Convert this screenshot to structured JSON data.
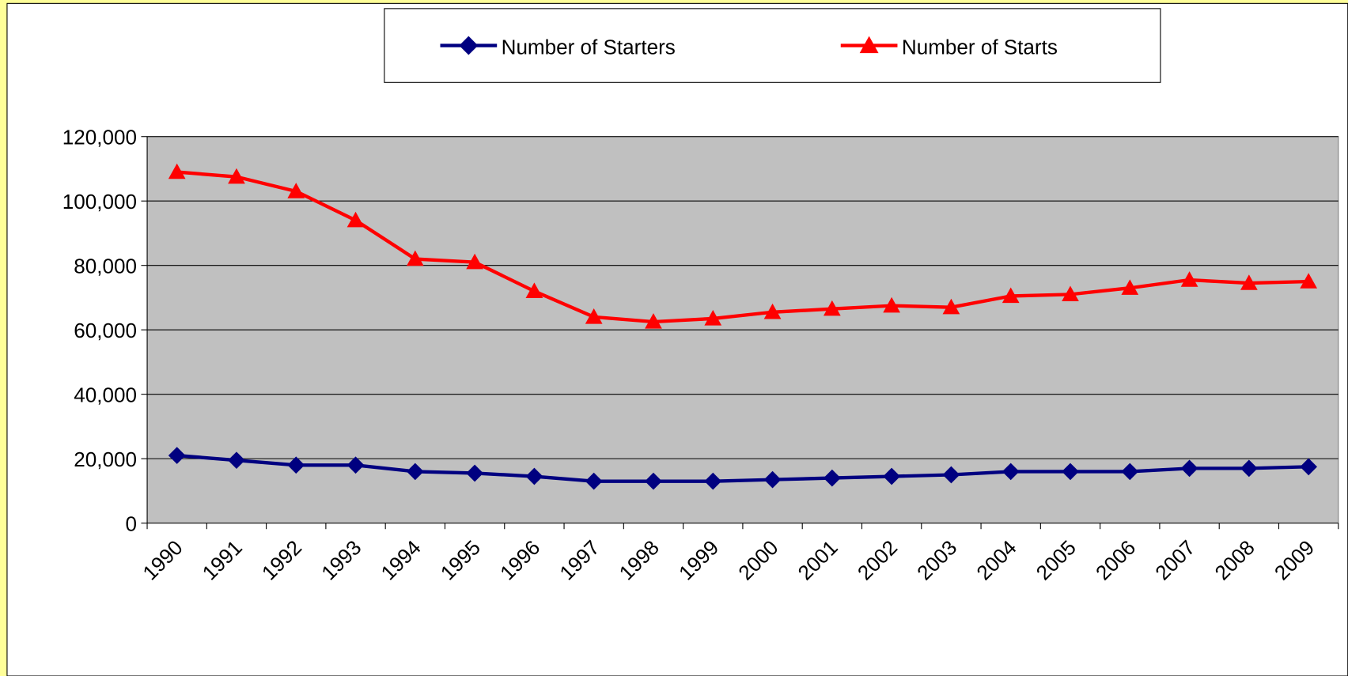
{
  "chart_data": {
    "type": "line",
    "categories": [
      "1990",
      "1991",
      "1992",
      "1993",
      "1994",
      "1995",
      "1996",
      "1997",
      "1998",
      "1999",
      "2000",
      "2001",
      "2002",
      "2003",
      "2004",
      "2005",
      "2006",
      "2007",
      "2008",
      "2009"
    ],
    "series": [
      {
        "name": "Number of Starters",
        "color": "#000080",
        "marker": "diamond",
        "values": [
          21000,
          19500,
          18000,
          18000,
          16000,
          15500,
          14500,
          13000,
          13000,
          13000,
          13500,
          14000,
          14500,
          15000,
          16000,
          16000,
          16000,
          17000,
          17000,
          17500
        ]
      },
      {
        "name": "Number of Starts",
        "color": "#ff0000",
        "marker": "triangle",
        "values": [
          109000,
          107500,
          103000,
          94000,
          82000,
          81000,
          72000,
          64000,
          62500,
          63500,
          65500,
          66500,
          67500,
          67000,
          70500,
          71000,
          73000,
          75500,
          74500,
          75000
        ]
      }
    ],
    "ylim": [
      0,
      120000
    ],
    "yticks": [
      0,
      {
        "value": 20000,
        "label": "20,000"
      },
      {
        "value": 40000,
        "label": "40,000"
      },
      {
        "value": 60000,
        "label": "60,000"
      },
      {
        "value": 80000,
        "label": "80,000"
      },
      {
        "value": 100000,
        "label": "100,000"
      },
      {
        "value": 120000,
        "label": "120,000"
      }
    ],
    "grid": true,
    "plot_background": "#c0c0c0",
    "legend": "top"
  }
}
